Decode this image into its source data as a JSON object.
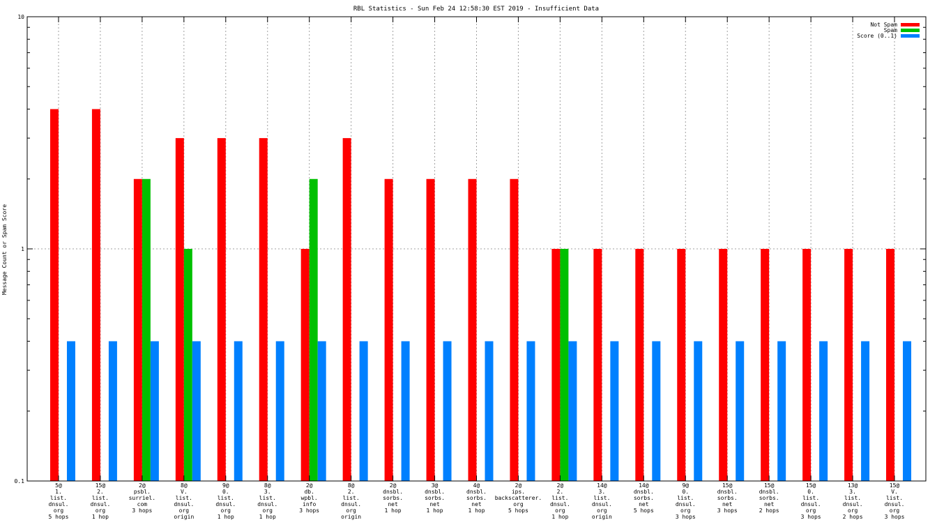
{
  "chart_data": {
    "type": "bar",
    "title": "RBL Statistics - Sun Feb 24 12:58:30 EST 2019 - Insufficient Data",
    "xlabel": "",
    "ylabel": "Message Count or Spam Score",
    "yscale": "log",
    "ylim": [
      0.1,
      10
    ],
    "yticks": [
      "10",
      "1",
      "0.1"
    ],
    "grid": true,
    "legend_position": "top-right",
    "categories": [
      [
        "5@",
        "1.",
        "list.",
        "dnsul.",
        "org",
        "5 hops"
      ],
      [
        "15@",
        "2.",
        "list.",
        "dnsul.",
        "org",
        "1 hop"
      ],
      [
        "2@",
        "psbl.",
        "surriel.",
        "com",
        "3 hops"
      ],
      [
        "8@",
        "V.",
        "list.",
        "dnsul.",
        "org",
        "origin"
      ],
      [
        "9@",
        "0.",
        "list.",
        "dnsul.",
        "org",
        "1 hop"
      ],
      [
        "8@",
        "3.",
        "list.",
        "dnsul.",
        "org",
        "1 hop"
      ],
      [
        "2@",
        "db.",
        "wpbl.",
        "info",
        "3 hops"
      ],
      [
        "8@",
        "2.",
        "list.",
        "dnsul.",
        "org",
        "origin"
      ],
      [
        "2@",
        "dnsbl.",
        "sorbs.",
        "net",
        "1 hop"
      ],
      [
        "3@",
        "dnsbl.",
        "sorbs.",
        "net",
        "1 hop"
      ],
      [
        "4@",
        "dnsbl.",
        "sorbs.",
        "net",
        "1 hop"
      ],
      [
        "2@",
        "ips.",
        "backscatterer.",
        "org",
        "5 hops"
      ],
      [
        "2@",
        "2.",
        "list.",
        "dnsul.",
        "org",
        "1 hop"
      ],
      [
        "14@",
        "3.",
        "list.",
        "dnsul.",
        "org",
        "origin"
      ],
      [
        "14@",
        "dnsbl.",
        "sorbs.",
        "net",
        "5 hops"
      ],
      [
        "9@",
        "0.",
        "list.",
        "dnsul.",
        "org",
        "3 hops"
      ],
      [
        "15@",
        "dnsbl.",
        "sorbs.",
        "net",
        "3 hops"
      ],
      [
        "15@",
        "dnsbl.",
        "sorbs.",
        "net",
        "2 hops"
      ],
      [
        "15@",
        "0.",
        "list.",
        "dnsul.",
        "org",
        "3 hops"
      ],
      [
        "13@",
        "3.",
        "list.",
        "dnsul.",
        "org",
        "2 hops"
      ],
      [
        "15@",
        "V.",
        "list.",
        "dnsul.",
        "org",
        "3 hops"
      ]
    ],
    "series": [
      {
        "name": "Not Spam",
        "color": "#ff0000",
        "values": [
          4,
          4,
          2,
          3,
          3,
          3,
          1,
          3,
          2,
          2,
          2,
          2,
          1,
          1,
          1,
          1,
          1,
          1,
          1,
          1,
          1
        ]
      },
      {
        "name": "Spam",
        "color": "#00c000",
        "values": [
          0,
          0,
          2,
          1,
          0,
          0,
          2,
          0,
          0,
          0,
          0,
          0,
          1,
          0,
          0,
          0,
          0,
          0,
          0,
          0,
          0
        ]
      },
      {
        "name": "Score (0..1)",
        "color": "#0080ff",
        "values": [
          0.4,
          0.4,
          0.4,
          0.4,
          0.4,
          0.4,
          0.4,
          0.4,
          0.4,
          0.4,
          0.4,
          0.4,
          0.4,
          0.4,
          0.4,
          0.4,
          0.4,
          0.4,
          0.4,
          0.4,
          0.4
        ]
      }
    ]
  }
}
